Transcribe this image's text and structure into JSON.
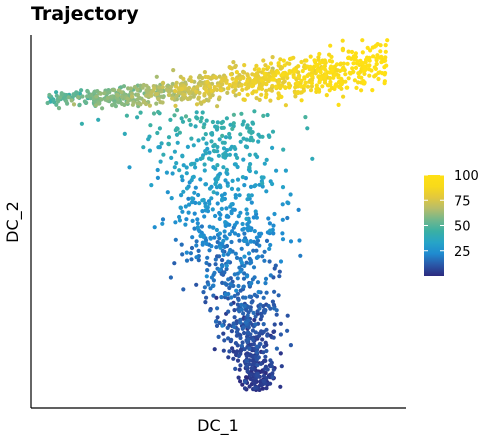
{
  "chart_data": {
    "type": "scatter",
    "title": "Trajectory",
    "xlabel": "DC_1",
    "ylabel": "DC_2",
    "x_ticks_shown": false,
    "y_ticks_shown": false,
    "grid": false,
    "legend": {
      "placement": "right",
      "type": "colorbar",
      "range": [
        0,
        100
      ],
      "ticks": [
        "25",
        "50",
        "75",
        "100"
      ],
      "colors": [
        "#2c2a7e",
        "#2a58a8",
        "#1f8bd0",
        "#27a4c7",
        "#3ab0a4",
        "#72b78c",
        "#b5bd6b",
        "#e2c83e",
        "#f8da1a",
        "#ffe014"
      ]
    },
    "point_color": "pseudotime",
    "structure": "triangular trajectory: a horizontal upper band from teal (left, mid values) to yellow (right, high values) and a descending arm of dark blue/purple points (low values) that converges to a narrow tip at the bottom",
    "n_points_approx": 1800
  }
}
